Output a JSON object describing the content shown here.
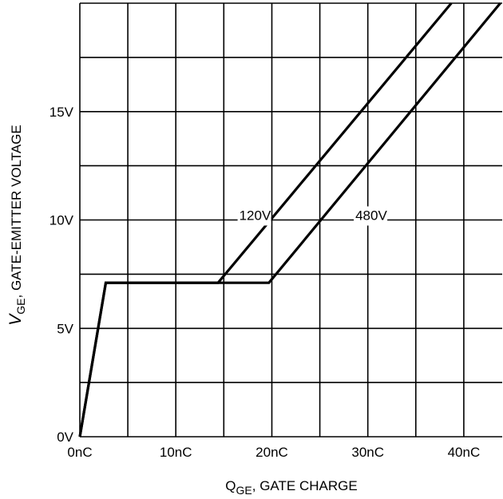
{
  "chart_data": {
    "type": "line",
    "title": "",
    "xlabel": {
      "main": "Q",
      "sub": "GE",
      "rest": ", GATE CHARGE"
    },
    "ylabel": {
      "main": "V",
      "sub": "GE",
      "rest": ", GATE-EMITTER VOLTAGE"
    },
    "xlim": [
      0,
      44
    ],
    "ylim": [
      0,
      20
    ],
    "x_ticks": [
      {
        "value": 0,
        "label": "0nC"
      },
      {
        "value": 10,
        "label": "10nC"
      },
      {
        "value": 20,
        "label": "20nC"
      },
      {
        "value": 30,
        "label": "30nC"
      },
      {
        "value": 40,
        "label": "40nC"
      }
    ],
    "y_ticks": [
      {
        "value": 0,
        "label": "0V"
      },
      {
        "value": 5,
        "label": "5V"
      },
      {
        "value": 10,
        "label": "10V"
      },
      {
        "value": 15,
        "label": "15V"
      }
    ],
    "x_grid_step": 5,
    "y_grid_step": 2.5,
    "grid": true,
    "series": [
      {
        "name": "120V",
        "points": [
          [
            0,
            0
          ],
          [
            2.7,
            7.1
          ],
          [
            14.4,
            7.1
          ],
          [
            38.7,
            20
          ]
        ],
        "label_at": [
          16.6,
          10.0
        ]
      },
      {
        "name": "480V",
        "points": [
          [
            0,
            0
          ],
          [
            2.7,
            7.1
          ],
          [
            19.7,
            7.1
          ],
          [
            43.8,
            20
          ]
        ],
        "label_at": [
          28.7,
          10.0
        ]
      }
    ]
  }
}
